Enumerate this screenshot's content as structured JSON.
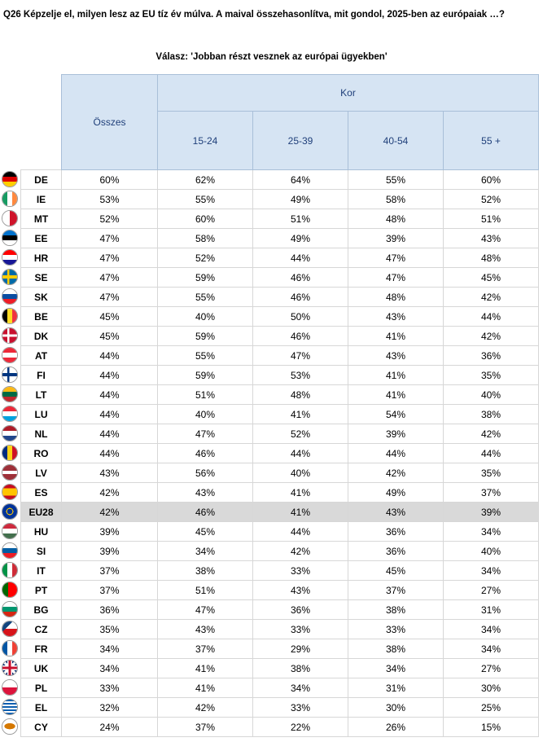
{
  "question": "Q26 Képzelje el, milyen lesz az EU tíz év múlva. A maival összehasonlítva, mit gondol, 2025-ben az európaiak …?",
  "answer": "Válasz: 'Jobban részt vesznek az európai ügyekben'",
  "headers": {
    "total": "Összes",
    "age_group": "Kor",
    "age_cols": [
      "15-24",
      "25-39",
      "40-54",
      "55 +"
    ]
  },
  "rows": [
    {
      "code": "DE",
      "total": "60%",
      "a1": "62%",
      "a2": "64%",
      "a3": "55%",
      "a4": "60%",
      "flag": "linear-gradient(#000 0 33.3%, #dd0000 33.3% 66.6%, #ffce00 66.6%)"
    },
    {
      "code": "IE",
      "total": "53%",
      "a1": "55%",
      "a2": "49%",
      "a3": "58%",
      "a4": "52%",
      "flag": "linear-gradient(90deg, #169b62 0 33.3%, #ffffff 33.3% 66.6%, #ff883e 66.6%)"
    },
    {
      "code": "MT",
      "total": "52%",
      "a1": "60%",
      "a2": "51%",
      "a3": "48%",
      "a4": "51%",
      "flag": "linear-gradient(90deg, #ffffff 0 50%, #cf142b 50%)"
    },
    {
      "code": "EE",
      "total": "47%",
      "a1": "58%",
      "a2": "49%",
      "a3": "39%",
      "a4": "43%",
      "flag": "linear-gradient(#0072ce 0 33.3%, #000 33.3% 66.6%, #ffffff 66.6%)"
    },
    {
      "code": "HR",
      "total": "47%",
      "a1": "52%",
      "a2": "44%",
      "a3": "47%",
      "a4": "48%",
      "flag": "linear-gradient(#ff0000 0 33.3%, #ffffff 33.3% 66.6%, #171796 66.6%)"
    },
    {
      "code": "SE",
      "total": "47%",
      "a1": "59%",
      "a2": "46%",
      "a3": "47%",
      "a4": "45%",
      "flag": "linear-gradient(transparent 40%, #fecc00 40% 60%, transparent 60%), linear-gradient(90deg, #006aa7 32%, #fecc00 32% 48%, #006aa7 48%)"
    },
    {
      "code": "SK",
      "total": "47%",
      "a1": "55%",
      "a2": "46%",
      "a3": "48%",
      "a4": "42%",
      "flag": "linear-gradient(#ffffff 0 33.3%, #0b4ea2 33.3% 66.6%, #ee1c25 66.6%)"
    },
    {
      "code": "BE",
      "total": "45%",
      "a1": "40%",
      "a2": "50%",
      "a3": "43%",
      "a4": "44%",
      "flag": "linear-gradient(90deg, #000 0 33.3%, #fdda24 33.3% 66.6%, #ef3340 66.6%)"
    },
    {
      "code": "DK",
      "total": "45%",
      "a1": "59%",
      "a2": "46%",
      "a3": "41%",
      "a4": "42%",
      "flag": "linear-gradient(transparent 42%, #ffffff 42% 58%, transparent 58%), linear-gradient(90deg, #c8102e 32%, #ffffff 32% 46%, #c8102e 46%)"
    },
    {
      "code": "AT",
      "total": "44%",
      "a1": "55%",
      "a2": "47%",
      "a3": "43%",
      "a4": "36%",
      "flag": "linear-gradient(#ed2939 0 33.3%, #ffffff 33.3% 66.6%, #ed2939 66.6%)"
    },
    {
      "code": "FI",
      "total": "44%",
      "a1": "59%",
      "a2": "53%",
      "a3": "41%",
      "a4": "35%",
      "flag": "linear-gradient(transparent 40%, #003580 40% 60%, transparent 60%), linear-gradient(90deg, #ffffff 32%, #003580 32% 48%, #ffffff 48%)"
    },
    {
      "code": "LT",
      "total": "44%",
      "a1": "51%",
      "a2": "48%",
      "a3": "41%",
      "a4": "40%",
      "flag": "linear-gradient(#fdb913 0 33.3%, #006a44 33.3% 66.6%, #c1272d 66.6%)"
    },
    {
      "code": "LU",
      "total": "44%",
      "a1": "40%",
      "a2": "41%",
      "a3": "54%",
      "a4": "38%",
      "flag": "linear-gradient(#ed2939 0 33.3%, #ffffff 33.3% 66.6%, #00a1de 66.6%)"
    },
    {
      "code": "NL",
      "total": "44%",
      "a1": "47%",
      "a2": "52%",
      "a3": "39%",
      "a4": "42%",
      "flag": "linear-gradient(#ae1c28 0 33.3%, #ffffff 33.3% 66.6%, #21468b 66.6%)"
    },
    {
      "code": "RO",
      "total": "44%",
      "a1": "46%",
      "a2": "44%",
      "a3": "44%",
      "a4": "44%",
      "flag": "linear-gradient(90deg, #002b7f 0 33.3%, #fcd116 33.3% 66.6%, #ce1126 66.6%)"
    },
    {
      "code": "LV",
      "total": "43%",
      "a1": "56%",
      "a2": "40%",
      "a3": "42%",
      "a4": "35%",
      "flag": "linear-gradient(#9e3039 0 40%, #ffffff 40% 60%, #9e3039 60%)"
    },
    {
      "code": "ES",
      "total": "42%",
      "a1": "43%",
      "a2": "41%",
      "a3": "49%",
      "a4": "37%",
      "flag": "linear-gradient(#c60b1e 0 25%, #ffc400 25% 75%, #c60b1e 75%)"
    },
    {
      "code": "EU28",
      "total": "42%",
      "a1": "46%",
      "a2": "41%",
      "a3": "43%",
      "a4": "39%",
      "flag": "radial-gradient(circle, #003399 0 26%, #ffcc00 26% 34%, #003399 34%)",
      "highlight": true
    },
    {
      "code": "HU",
      "total": "39%",
      "a1": "45%",
      "a2": "44%",
      "a3": "36%",
      "a4": "34%",
      "flag": "linear-gradient(#cd2a3e 0 33.3%, #ffffff 33.3% 66.6%, #436f4d 66.6%)"
    },
    {
      "code": "SI",
      "total": "39%",
      "a1": "34%",
      "a2": "42%",
      "a3": "36%",
      "a4": "40%",
      "flag": "linear-gradient(#ffffff 0 33.3%, #005da4 33.3% 66.6%, #ed1c24 66.6%)"
    },
    {
      "code": "IT",
      "total": "37%",
      "a1": "38%",
      "a2": "33%",
      "a3": "45%",
      "a4": "34%",
      "flag": "linear-gradient(90deg, #009246 0 33.3%, #ffffff 33.3% 66.6%, #ce2b37 66.6%)"
    },
    {
      "code": "PT",
      "total": "37%",
      "a1": "51%",
      "a2": "43%",
      "a3": "37%",
      "a4": "27%",
      "flag": "linear-gradient(90deg, #006600 0 40%, #ff0000 40%)"
    },
    {
      "code": "BG",
      "total": "36%",
      "a1": "47%",
      "a2": "36%",
      "a3": "38%",
      "a4": "31%",
      "flag": "linear-gradient(#ffffff 0 33.3%, #00966e 33.3% 66.6%, #d62612 66.6%)"
    },
    {
      "code": "CZ",
      "total": "35%",
      "a1": "43%",
      "a2": "33%",
      "a3": "33%",
      "a4": "34%",
      "flag": "linear-gradient(135deg, #11457e 0 35%, transparent 35%), linear-gradient(#ffffff 0 50%, #d7141a 50%)"
    },
    {
      "code": "FR",
      "total": "34%",
      "a1": "37%",
      "a2": "29%",
      "a3": "38%",
      "a4": "34%",
      "flag": "linear-gradient(90deg, #0055a4 0 33.3%, #ffffff 33.3% 66.6%, #ef4135 66.6%)"
    },
    {
      "code": "UK",
      "total": "34%",
      "a1": "41%",
      "a2": "38%",
      "a3": "34%",
      "a4": "27%",
      "flag": "linear-gradient(transparent 42%, #c8102e 42% 58%, transparent 58%), linear-gradient(90deg, transparent 42%, #c8102e 42% 58%, transparent 58%), linear-gradient(transparent 34%, #ffffff 34% 66%, transparent 66%), linear-gradient(90deg, transparent 34%, #ffffff 34% 66%, transparent 66%), linear-gradient(45deg, transparent 44%, #ffffff 44% 56%, transparent 56%), linear-gradient(-45deg, transparent 44%, #ffffff 44% 56%, transparent 56%), linear-gradient(#012169, #012169)"
    },
    {
      "code": "PL",
      "total": "33%",
      "a1": "41%",
      "a2": "34%",
      "a3": "31%",
      "a4": "30%",
      "flag": "linear-gradient(#ffffff 0 50%, #dc143c 50%)"
    },
    {
      "code": "EL",
      "total": "32%",
      "a1": "42%",
      "a2": "33%",
      "a3": "30%",
      "a4": "25%",
      "flag": "linear-gradient(#0d5eaf 0 11%, #fff 11% 22%, #0d5eaf 22% 33%, #fff 33% 44%, #0d5eaf 44% 55%, #fff 55% 66%, #0d5eaf 66% 77%, #fff 77% 88%, #0d5eaf 88%)"
    },
    {
      "code": "CY",
      "total": "24%",
      "a1": "37%",
      "a2": "22%",
      "a3": "26%",
      "a4": "15%",
      "flag": "radial-gradient(ellipse 40% 22% at 50% 48%, #d57800 0 90%, transparent 95%), linear-gradient(#ffffff, #ffffff)"
    }
  ],
  "colors": {
    "header_bg": "#d6e4f3",
    "header_text": "#1f3f7a",
    "highlight_bg": "#d9d9d9",
    "grid": "#d7d7d7"
  }
}
